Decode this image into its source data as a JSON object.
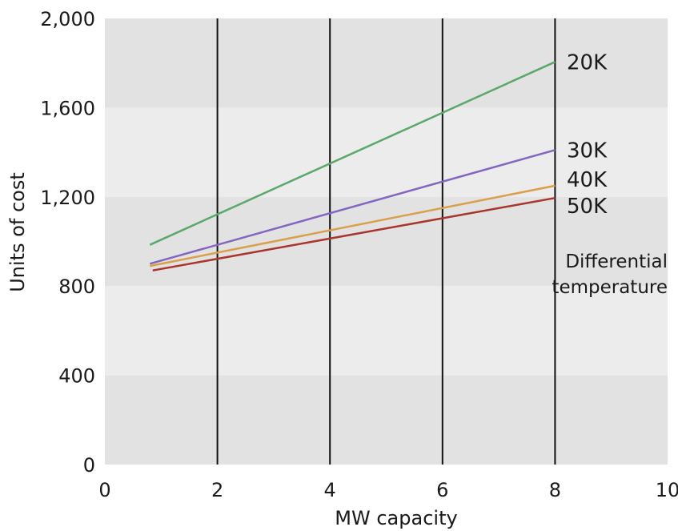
{
  "chart_data": {
    "type": "line",
    "xlabel": "MW capacity",
    "ylabel": "Units of cost",
    "xlim": [
      0,
      10
    ],
    "ylim": [
      0,
      2000
    ],
    "xticks": [
      0,
      2,
      4,
      6,
      8,
      10
    ],
    "yticks": [
      0,
      400,
      800,
      1200,
      1600,
      2000
    ],
    "xtick_labels": [
      "0",
      "2",
      "4",
      "6",
      "8",
      "10"
    ],
    "ytick_labels": [
      "0",
      "400",
      "800",
      "1,200",
      "1,600",
      "2,000"
    ],
    "vertical_lines": [
      2,
      4,
      6,
      8
    ],
    "band_colors": [
      "#e2e2e2",
      "#ececec"
    ],
    "annotation": [
      "Differential",
      "temperature"
    ],
    "series": [
      {
        "name": "20K",
        "color": "#5aa86a",
        "x": [
          0.8,
          8
        ],
        "y": [
          985,
          1805
        ]
      },
      {
        "name": "30K",
        "color": "#8466c0",
        "x": [
          0.8,
          8
        ],
        "y": [
          900,
          1410
        ]
      },
      {
        "name": "40K",
        "color": "#d8a04a",
        "x": [
          0.8,
          8
        ],
        "y": [
          890,
          1250
        ]
      },
      {
        "name": "50K",
        "color": "#a8362a",
        "x": [
          0.85,
          8
        ],
        "y": [
          870,
          1195
        ]
      }
    ]
  }
}
